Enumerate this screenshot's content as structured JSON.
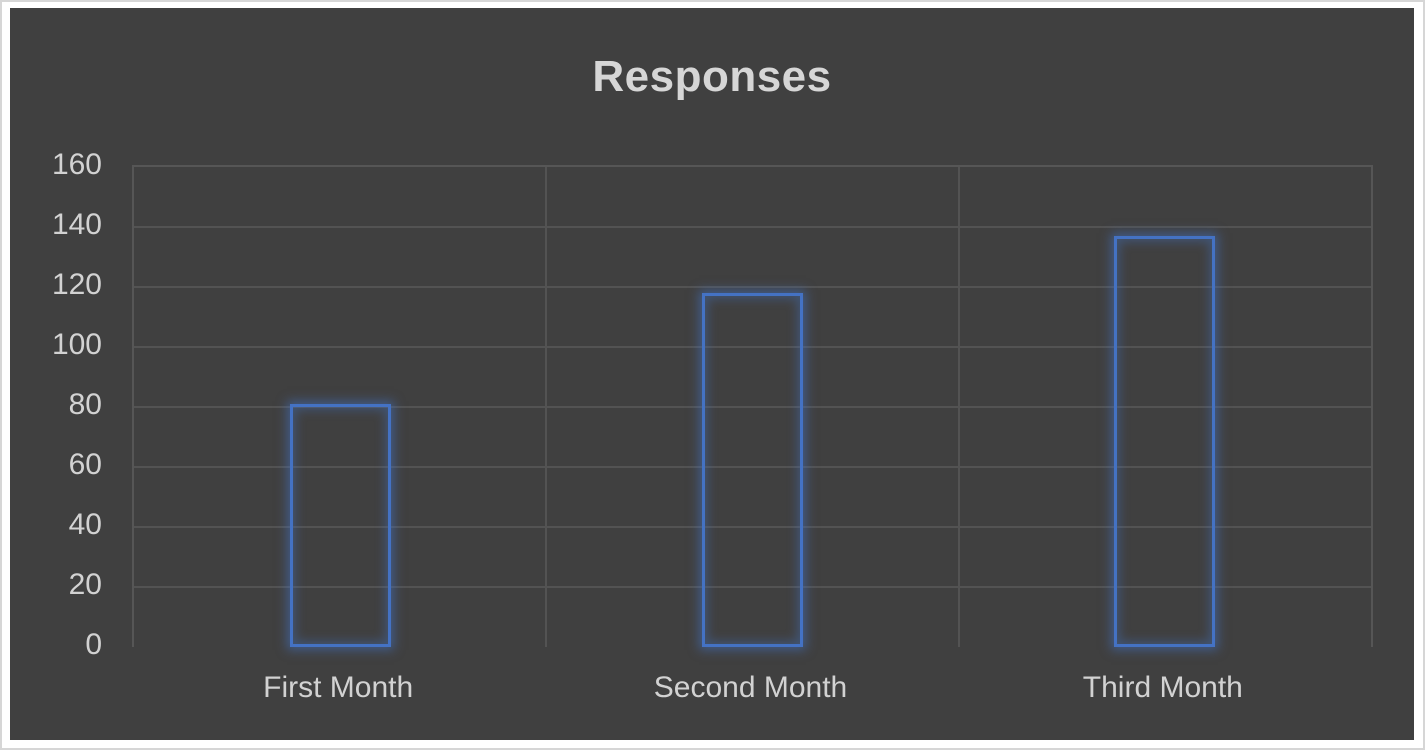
{
  "chart_data": {
    "type": "bar",
    "title": "Responses",
    "categories": [
      "First Month",
      "Second Month",
      "Third Month"
    ],
    "values": [
      81,
      118,
      137
    ],
    "xlabel": "",
    "ylabel": "",
    "ylim": [
      0,
      160
    ],
    "y_ticks": [
      0,
      20,
      40,
      60,
      80,
      100,
      120,
      140,
      160
    ],
    "grid": true,
    "legend": false,
    "bar_style": "outlined-with-glow",
    "colors": {
      "canvas_background": "#404040",
      "page_margin": "#ffffff",
      "frame_border": "#d6d6d6",
      "gridline": "#535353",
      "plot_border": "#565656",
      "text": "#d2d2d2",
      "title_text": "#d6d6d6",
      "bar_stroke": "#4472c4"
    }
  }
}
